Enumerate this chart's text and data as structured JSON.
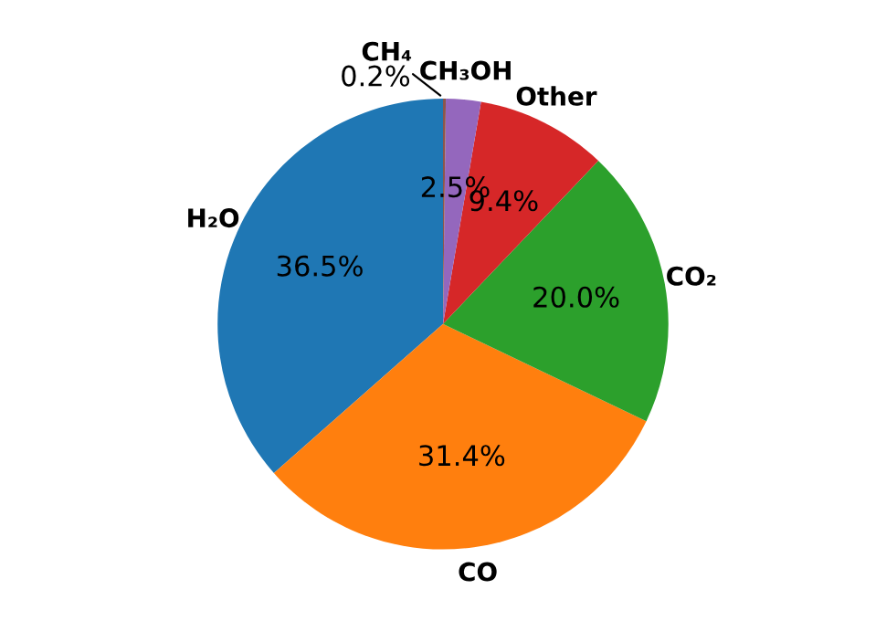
{
  "chart_data": {
    "type": "pie",
    "categories": [
      "H₂O",
      "CO",
      "CO₂",
      "Other",
      "CH₃OH",
      "CH₄"
    ],
    "values": [
      36.5,
      31.4,
      20.0,
      9.4,
      2.5,
      0.2
    ],
    "colors": [
      "#1f77b4",
      "#ff7f0e",
      "#2ca02c",
      "#d62728",
      "#9467bd",
      "#8c564b"
    ],
    "value_labels": [
      "36.5%",
      "31.4%",
      "20.0%",
      "9.4%",
      "2.5%",
      "0.2%"
    ]
  }
}
